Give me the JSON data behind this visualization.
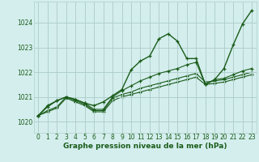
{
  "bg_color": "#d4eeed",
  "grid_color": "#b0d0cc",
  "line_color": "#1a5c1a",
  "xlabel": "Graphe pression niveau de la mer (hPa)",
  "x_ticks": [
    0,
    1,
    2,
    3,
    4,
    5,
    6,
    7,
    8,
    9,
    10,
    11,
    12,
    13,
    14,
    15,
    16,
    17,
    18,
    19,
    20,
    21,
    22,
    23
  ],
  "y_ticks": [
    1020,
    1021,
    1022,
    1023,
    1024
  ],
  "ylim": [
    1019.55,
    1024.85
  ],
  "xlim": [
    -0.5,
    23.5
  ],
  "series": [
    [
      1020.25,
      1020.65,
      1020.85,
      1021.0,
      1020.9,
      1020.75,
      1020.65,
      1020.8,
      1021.05,
      1021.3,
      1022.1,
      1022.45,
      1022.65,
      1023.35,
      1023.55,
      1023.25,
      1022.55,
      1022.55,
      1021.5,
      1021.7,
      1022.15,
      1023.1,
      1023.95,
      1024.5
    ],
    [
      1020.25,
      1020.6,
      1020.85,
      1021.0,
      1020.9,
      1020.75,
      1020.5,
      1020.5,
      1021.0,
      1021.25,
      1021.45,
      1021.65,
      1021.8,
      1021.95,
      1022.05,
      1022.15,
      1022.3,
      1022.4,
      1021.5,
      1021.7,
      1021.75,
      1021.9,
      1022.05,
      1022.15
    ],
    [
      1020.25,
      1020.45,
      1020.6,
      1021.0,
      1020.85,
      1020.7,
      1020.45,
      1020.45,
      1020.95,
      1021.1,
      1021.2,
      1021.35,
      1021.45,
      1021.55,
      1021.65,
      1021.75,
      1021.85,
      1021.95,
      1021.6,
      1021.65,
      1021.7,
      1021.8,
      1021.9,
      1022.0
    ],
    [
      1020.25,
      1020.4,
      1020.55,
      1020.95,
      1020.8,
      1020.65,
      1020.4,
      1020.4,
      1020.85,
      1021.0,
      1021.1,
      1021.2,
      1021.3,
      1021.4,
      1021.5,
      1021.6,
      1021.7,
      1021.8,
      1021.5,
      1021.55,
      1021.6,
      1021.7,
      1021.8,
      1021.9
    ]
  ]
}
